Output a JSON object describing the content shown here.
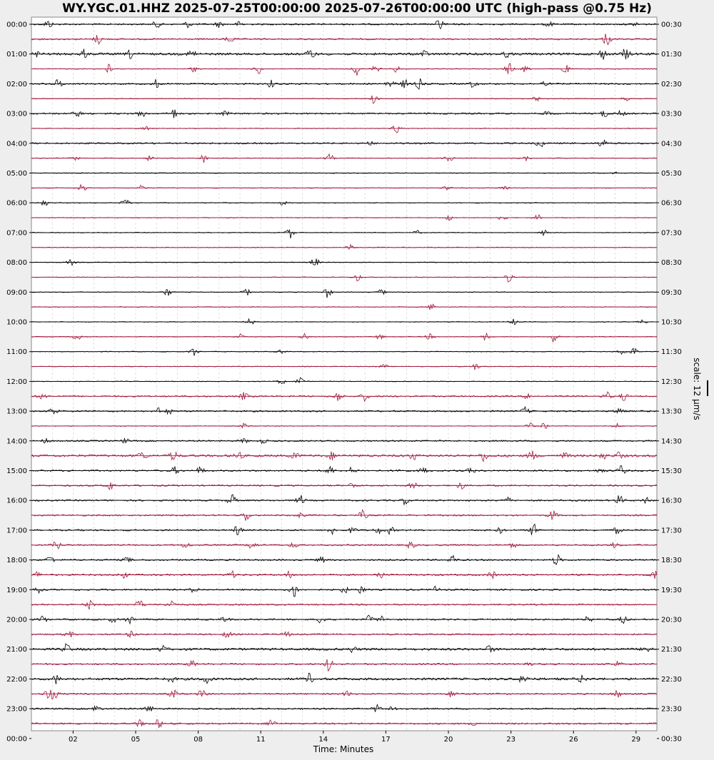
{
  "chart_data": {
    "type": "line",
    "title": "WY.YGC.01.HHZ 2025-07-25T00:00:00 2025-07-26T00:00:00 UTC (high-pass @0.75 Hz)",
    "xlabel": "Time: Minutes",
    "x_ticks": [
      "02",
      "05",
      "08",
      "11",
      "14",
      "17",
      "20",
      "23",
      "26",
      "29"
    ],
    "x_tick_values": [
      2,
      5,
      8,
      11,
      14,
      17,
      20,
      23,
      26,
      29
    ],
    "xlim": [
      0,
      30
    ],
    "y_ticks_left": [
      "00:00",
      "01:00",
      "02:00",
      "03:00",
      "04:00",
      "05:00",
      "06:00",
      "07:00",
      "08:00",
      "09:00",
      "10:00",
      "11:00",
      "12:00",
      "13:00",
      "14:00",
      "15:00",
      "16:00",
      "17:00",
      "18:00",
      "19:00",
      "20:00",
      "21:00",
      "22:00",
      "23:00",
      "00:00"
    ],
    "y_ticks_right": [
      "00:30",
      "01:30",
      "02:30",
      "03:30",
      "04:30",
      "05:30",
      "06:30",
      "07:30",
      "08:30",
      "09:30",
      "10:30",
      "11:30",
      "12:30",
      "13:30",
      "14:30",
      "15:30",
      "16:30",
      "17:30",
      "18:30",
      "19:30",
      "20:30",
      "21:30",
      "22:30",
      "23:30",
      "00:30"
    ],
    "scale_label": "scale: 12 µm/s",
    "line_colors": [
      "#000000",
      "#a0183c"
    ],
    "grid": "vertical dashed minute lines",
    "traces": [
      {
        "start": "00:00",
        "noise": 2,
        "bursts": [
          [
            0.8,
            6
          ],
          [
            6,
            5
          ],
          [
            7.5,
            4
          ],
          [
            9,
            4
          ],
          [
            10,
            4
          ],
          [
            19.6,
            9
          ],
          [
            24.8,
            4
          ],
          [
            29,
            3
          ]
        ]
      },
      {
        "start": "00:30",
        "noise": 2,
        "bursts": [
          [
            3.2,
            7
          ],
          [
            9.5,
            6
          ],
          [
            27.6,
            9
          ]
        ]
      },
      {
        "start": "01:00",
        "noise": 3,
        "bursts": [
          [
            0.3,
            4
          ],
          [
            2.5,
            6
          ],
          [
            4.8,
            7
          ],
          [
            7.7,
            6
          ],
          [
            13.4,
            8
          ],
          [
            18.8,
            5
          ],
          [
            22.8,
            4
          ],
          [
            27.4,
            7
          ],
          [
            28.5,
            8
          ]
        ]
      },
      {
        "start": "01:30",
        "noise": 1,
        "bursts": [
          [
            3.7,
            7
          ],
          [
            7.8,
            4
          ],
          [
            10.9,
            8
          ],
          [
            15.6,
            9
          ],
          [
            16.5,
            5
          ],
          [
            17.5,
            5
          ],
          [
            22.9,
            9
          ],
          [
            23.7,
            5
          ],
          [
            25.6,
            7
          ]
        ]
      },
      {
        "start": "02:00",
        "noise": 2,
        "bursts": [
          [
            1.3,
            7
          ],
          [
            6,
            6
          ],
          [
            11.5,
            5
          ],
          [
            17.2,
            8
          ],
          [
            17.9,
            6
          ],
          [
            18.6,
            7
          ],
          [
            21.2,
            5
          ],
          [
            24.6,
            4
          ]
        ]
      },
      {
        "start": "02:30",
        "noise": 1,
        "bursts": [
          [
            16.4,
            7
          ],
          [
            24.2,
            4
          ],
          [
            28.5,
            3
          ]
        ]
      },
      {
        "start": "03:00",
        "noise": 2,
        "bursts": [
          [
            2.2,
            5
          ],
          [
            5.3,
            6
          ],
          [
            6.8,
            8
          ],
          [
            9.3,
            3
          ],
          [
            24.8,
            4
          ],
          [
            27.5,
            5
          ],
          [
            28.3,
            4
          ]
        ]
      },
      {
        "start": "03:30",
        "noise": 1,
        "bursts": [
          [
            5.5,
            3
          ],
          [
            17.5,
            7
          ]
        ]
      },
      {
        "start": "04:00",
        "noise": 2,
        "bursts": [
          [
            16.2,
            3
          ],
          [
            24.4,
            6
          ],
          [
            27.4,
            6
          ]
        ]
      },
      {
        "start": "04:30",
        "noise": 1,
        "bursts": [
          [
            2.1,
            3
          ],
          [
            5.7,
            4
          ],
          [
            8.3,
            7
          ],
          [
            14.3,
            6
          ],
          [
            20,
            7
          ],
          [
            23.7,
            4
          ]
        ]
      },
      {
        "start": "05:00",
        "noise": 1,
        "bursts": [
          [
            28,
            3
          ]
        ]
      },
      {
        "start": "05:30",
        "noise": 1,
        "bursts": [
          [
            2.4,
            7
          ],
          [
            5.3,
            4
          ],
          [
            19.9,
            4
          ],
          [
            22.7,
            4
          ]
        ]
      },
      {
        "start": "06:00",
        "noise": 1,
        "bursts": [
          [
            0.6,
            6
          ],
          [
            4.5,
            6
          ],
          [
            12.1,
            4
          ]
        ]
      },
      {
        "start": "06:30",
        "noise": 1,
        "bursts": [
          [
            20,
            4
          ],
          [
            22.6,
            5
          ],
          [
            24.3,
            4
          ]
        ]
      },
      {
        "start": "07:00",
        "noise": 1,
        "bursts": [
          [
            12.4,
            8
          ],
          [
            18.5,
            3
          ],
          [
            24.6,
            5
          ]
        ]
      },
      {
        "start": "07:30",
        "noise": 1,
        "bursts": [
          [
            15.3,
            4
          ]
        ]
      },
      {
        "start": "08:00",
        "noise": 1,
        "bursts": [
          [
            1.9,
            4
          ],
          [
            13.6,
            7
          ]
        ]
      },
      {
        "start": "08:30",
        "noise": 1,
        "bursts": [
          [
            15.6,
            6
          ],
          [
            22.9,
            7
          ]
        ]
      },
      {
        "start": "09:00",
        "noise": 1,
        "bursts": [
          [
            6.5,
            6
          ],
          [
            10.3,
            5
          ],
          [
            14.2,
            8
          ],
          [
            16.8,
            4
          ]
        ]
      },
      {
        "start": "09:30",
        "noise": 1,
        "bursts": [
          [
            19.2,
            5
          ]
        ]
      },
      {
        "start": "10:00",
        "noise": 1,
        "bursts": [
          [
            10.5,
            5
          ],
          [
            23.1,
            5
          ],
          [
            29.3,
            3
          ]
        ]
      },
      {
        "start": "10:30",
        "noise": 1,
        "bursts": [
          [
            2.2,
            7
          ],
          [
            10,
            6
          ],
          [
            13.1,
            4
          ],
          [
            16.7,
            4
          ],
          [
            19.1,
            4
          ],
          [
            21.8,
            5
          ],
          [
            25.1,
            9
          ]
        ]
      },
      {
        "start": "11:00",
        "noise": 1,
        "bursts": [
          [
            7.8,
            7
          ],
          [
            12,
            3
          ],
          [
            28.3,
            5
          ],
          [
            28.9,
            5
          ]
        ]
      },
      {
        "start": "11:30",
        "noise": 1,
        "bursts": [
          [
            16.9,
            3
          ],
          [
            21.3,
            5
          ]
        ]
      },
      {
        "start": "12:00",
        "noise": 1,
        "bursts": [
          [
            12,
            4
          ],
          [
            12.9,
            6
          ]
        ]
      },
      {
        "start": "12:30",
        "noise": 2,
        "bursts": [
          [
            0.5,
            5
          ],
          [
            10.2,
            6
          ],
          [
            14.7,
            7
          ],
          [
            16,
            6
          ],
          [
            23.8,
            4
          ],
          [
            27.6,
            6
          ],
          [
            28.4,
            5
          ]
        ]
      },
      {
        "start": "13:00",
        "noise": 2,
        "bursts": [
          [
            1.1,
            6
          ],
          [
            6.1,
            4
          ],
          [
            6.6,
            4
          ],
          [
            23.7,
            5
          ],
          [
            28.2,
            6
          ]
        ]
      },
      {
        "start": "13:30",
        "noise": 1,
        "bursts": [
          [
            10.2,
            4
          ],
          [
            23.9,
            5
          ],
          [
            24.6,
            4
          ],
          [
            28.1,
            5
          ]
        ]
      },
      {
        "start": "14:00",
        "noise": 2,
        "bursts": [
          [
            0.7,
            3
          ],
          [
            4.5,
            3
          ],
          [
            10.2,
            3
          ],
          [
            11.1,
            3
          ]
        ]
      },
      {
        "start": "14:30",
        "noise": 3,
        "bursts": [
          [
            5.3,
            6
          ],
          [
            6.8,
            7
          ],
          [
            9.9,
            6
          ],
          [
            12.6,
            6
          ],
          [
            14.4,
            5
          ],
          [
            18.3,
            6
          ],
          [
            21.7,
            7
          ],
          [
            24,
            7
          ],
          [
            25.6,
            5
          ],
          [
            27.4,
            5
          ],
          [
            28.2,
            5
          ]
        ]
      },
      {
        "start": "15:00",
        "noise": 2,
        "bursts": [
          [
            6.9,
            5
          ],
          [
            8.1,
            5
          ],
          [
            14.3,
            7
          ],
          [
            15.4,
            5
          ],
          [
            17.7,
            4
          ],
          [
            18.8,
            5
          ],
          [
            21.1,
            4
          ],
          [
            27.3,
            4
          ],
          [
            28.3,
            7
          ]
        ]
      },
      {
        "start": "15:30",
        "noise": 2,
        "bursts": [
          [
            3.8,
            6
          ],
          [
            15.4,
            4
          ],
          [
            18.3,
            6
          ],
          [
            20.6,
            5
          ]
        ]
      },
      {
        "start": "16:00",
        "noise": 2,
        "bursts": [
          [
            9.6,
            9
          ],
          [
            12.9,
            7
          ],
          [
            17.9,
            5
          ],
          [
            22.8,
            5
          ],
          [
            28.2,
            7
          ],
          [
            29.5,
            4
          ]
        ]
      },
      {
        "start": "16:30",
        "noise": 2,
        "bursts": [
          [
            10.3,
            8
          ],
          [
            12.9,
            4
          ],
          [
            15.9,
            7
          ],
          [
            25,
            8
          ]
        ]
      },
      {
        "start": "17:00",
        "noise": 2,
        "bursts": [
          [
            9.9,
            7
          ],
          [
            14.4,
            6
          ],
          [
            15.4,
            4
          ],
          [
            16.6,
            5
          ],
          [
            17.2,
            5
          ],
          [
            22.5,
            4
          ],
          [
            24.1,
            9
          ],
          [
            28.1,
            5
          ]
        ]
      },
      {
        "start": "17:30",
        "noise": 2,
        "bursts": [
          [
            1.2,
            7
          ],
          [
            7.4,
            5
          ],
          [
            10.6,
            7
          ],
          [
            12.6,
            4
          ],
          [
            18.2,
            5
          ],
          [
            23.1,
            4
          ],
          [
            28,
            4
          ]
        ]
      },
      {
        "start": "18:00",
        "noise": 2,
        "bursts": [
          [
            0.9,
            6
          ],
          [
            4.6,
            4
          ],
          [
            13.9,
            4
          ],
          [
            20.2,
            7
          ],
          [
            25.2,
            8
          ]
        ]
      },
      {
        "start": "18:30",
        "noise": 2,
        "bursts": [
          [
            0.3,
            4
          ],
          [
            4.4,
            6
          ],
          [
            9.6,
            5
          ],
          [
            12.4,
            5
          ],
          [
            16.7,
            6
          ],
          [
            22.1,
            5
          ],
          [
            29.9,
            7
          ]
        ]
      },
      {
        "start": "19:00",
        "noise": 2,
        "bursts": [
          [
            0.3,
            5
          ],
          [
            7.8,
            4
          ],
          [
            12.6,
            11
          ],
          [
            15,
            5
          ],
          [
            15.8,
            5
          ],
          [
            19.4,
            4
          ]
        ]
      },
      {
        "start": "19:30",
        "noise": 2,
        "bursts": [
          [
            2.8,
            6
          ],
          [
            5.2,
            7
          ],
          [
            6.7,
            7
          ]
        ]
      },
      {
        "start": "20:00",
        "noise": 2,
        "bursts": [
          [
            0.6,
            5
          ],
          [
            3.9,
            4
          ],
          [
            4.7,
            6
          ],
          [
            9.3,
            5
          ],
          [
            13.9,
            7
          ],
          [
            16.2,
            5
          ],
          [
            16.8,
            5
          ],
          [
            26.7,
            4
          ],
          [
            28.4,
            6
          ]
        ]
      },
      {
        "start": "20:30",
        "noise": 2,
        "bursts": [
          [
            1.8,
            5
          ],
          [
            4.8,
            5
          ],
          [
            9.4,
            5
          ],
          [
            12.2,
            5
          ]
        ]
      },
      {
        "start": "21:00",
        "noise": 3,
        "bursts": [
          [
            1.7,
            7
          ],
          [
            6.3,
            5
          ],
          [
            15.4,
            4
          ],
          [
            22,
            5
          ],
          [
            29.5,
            6
          ]
        ]
      },
      {
        "start": "21:30",
        "noise": 2,
        "bursts": [
          [
            7.7,
            5
          ],
          [
            14.3,
            11
          ],
          [
            23.8,
            4
          ],
          [
            28.1,
            5
          ]
        ]
      },
      {
        "start": "22:00",
        "noise": 3,
        "bursts": [
          [
            1.2,
            6
          ],
          [
            6.7,
            4
          ],
          [
            8.4,
            7
          ],
          [
            13.3,
            7
          ],
          [
            23.6,
            7
          ],
          [
            26.4,
            5
          ]
        ]
      },
      {
        "start": "22:30",
        "noise": 2,
        "bursts": [
          [
            0.8,
            7
          ],
          [
            1.1,
            6
          ],
          [
            6.8,
            7
          ],
          [
            8.2,
            6
          ],
          [
            15.1,
            4
          ],
          [
            20.2,
            6
          ],
          [
            28.1,
            6
          ]
        ]
      },
      {
        "start": "23:00",
        "noise": 2,
        "bursts": [
          [
            3.1,
            5
          ],
          [
            5.6,
            6
          ],
          [
            16.6,
            6
          ],
          [
            17.4,
            6
          ]
        ]
      },
      {
        "start": "23:30",
        "noise": 2,
        "bursts": [
          [
            5.2,
            5
          ],
          [
            6.1,
            6
          ],
          [
            11.5,
            7
          ],
          [
            21.3,
            4
          ]
        ]
      }
    ]
  }
}
